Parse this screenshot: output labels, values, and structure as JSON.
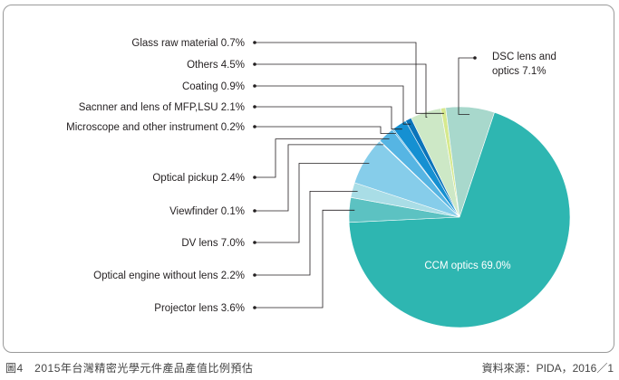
{
  "chart_data": {
    "type": "pie",
    "title": "",
    "series": [
      {
        "name": "CCM optics",
        "value": 69.0,
        "label": "CCM optics 69.0%",
        "color": "#2eb6b1"
      },
      {
        "name": "Projector lens",
        "value": 3.6,
        "label": "Projector lens 3.6%",
        "color": "#5cc2c2"
      },
      {
        "name": "Optical engine without lens",
        "value": 2.2,
        "label": "Optical engine without lens 2.2%",
        "color": "#a9dde6"
      },
      {
        "name": "DV lens",
        "value": 7.0,
        "label": "DV lens 7.0%",
        "color": "#86cdea"
      },
      {
        "name": "Viewfinder",
        "value": 0.1,
        "label": "Viewfinder 0.1%",
        "color": "#6fc0e6"
      },
      {
        "name": "Optical pickup",
        "value": 2.4,
        "label": "Optical pickup 2.4%",
        "color": "#56b5e3"
      },
      {
        "name": "Microscope and other instrument",
        "value": 0.2,
        "label": "Microscope and other instrument 0.2%",
        "color": "#3aa6dd"
      },
      {
        "name": "Sacnner and lens of MFP,LSU",
        "value": 2.1,
        "label": "Sacnner and lens of MFP,LSU 2.1%",
        "color": "#1590d2"
      },
      {
        "name": "Coating",
        "value": 0.9,
        "label": "Coating 0.9%",
        "color": "#0b74ba"
      },
      {
        "name": "Others",
        "value": 4.5,
        "label": "Others 4.5%",
        "color": "#cde8c6"
      },
      {
        "name": "Glass raw material",
        "value": 0.7,
        "label": "Glass raw material 0.7%",
        "color": "#d6e98e"
      },
      {
        "name": "DSC lens and optics",
        "value": 7.1,
        "label_lines": [
          "DSC lens and",
          "optics  7.1%"
        ],
        "color": "#a8d8cc"
      }
    ]
  },
  "caption": "圖4　2015年台灣精密光學元件產品產值比例預估",
  "source": "資料來源：PIDA，2016／1"
}
